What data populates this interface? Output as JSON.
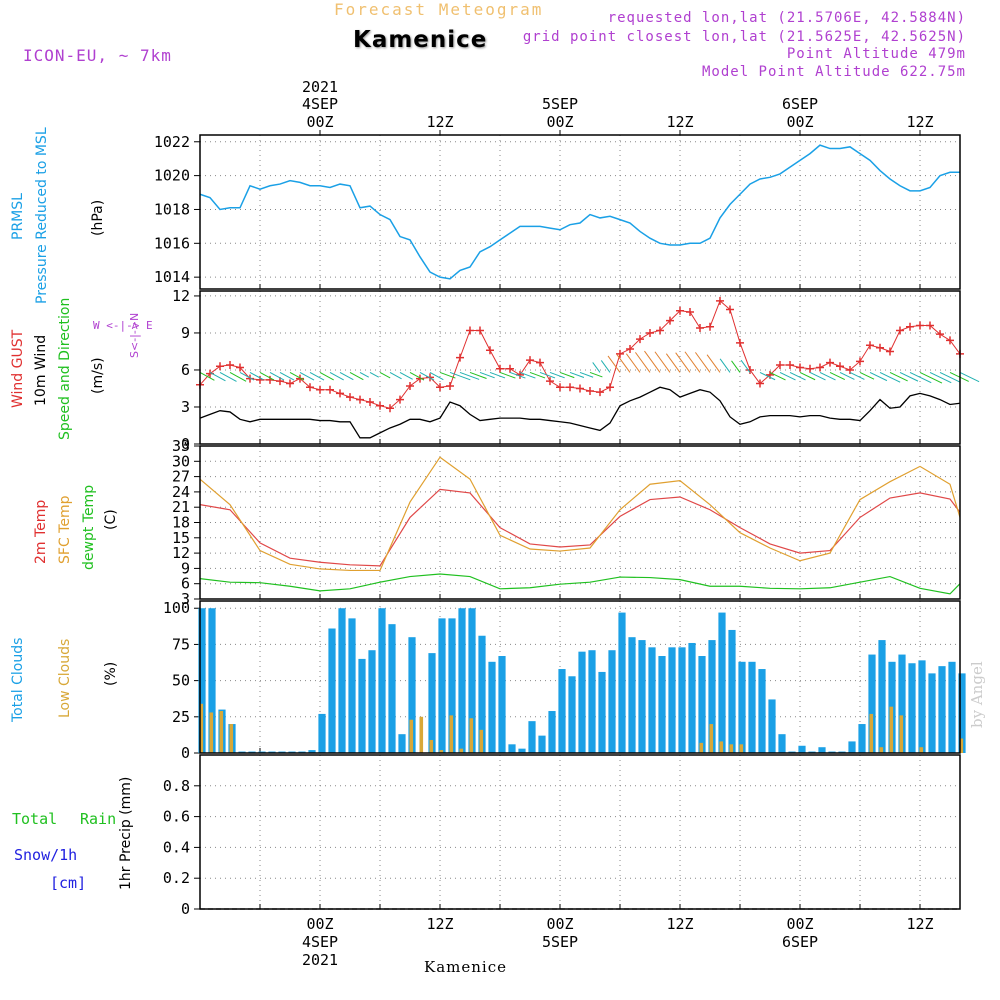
{
  "header": {
    "title_top": "Forecast Meteogram",
    "location": "Kamenice",
    "model": "ICON-EU, ~ 7km",
    "requested": "requested lon,lat (21.5706E, 42.5884N)",
    "grid_point": "grid point closest lon,lat (21.5625E, 42.5625N)",
    "point_altitude": "Point Altitude 479m",
    "model_altitude": "Model Point Altitude 622.75m",
    "watermark": "by Angel",
    "footer_location": "Kamenice"
  },
  "colors": {
    "pressure": "#1aa0e6",
    "gust": "#e03030",
    "wind10": "#000000",
    "temp2m": "#e04848",
    "sfc": "#e0a030",
    "dewpt": "#20c020",
    "total_clouds": "#1aa0e6",
    "low_clouds": "#d8a838",
    "dir_label": "#b040d0",
    "rain": "#20c020",
    "snow": "#2020e0"
  },
  "time_axis": {
    "top_ticks": [
      {
        "line1": "2021",
        "line2": "4SEP",
        "line3": "00Z",
        "h": 12
      },
      {
        "line1": "",
        "line2": "",
        "line3": "12Z",
        "h": 24
      },
      {
        "line1": "",
        "line2": "5SEP",
        "line3": "00Z",
        "h": 36
      },
      {
        "line1": "",
        "line2": "",
        "line3": "12Z",
        "h": 48
      },
      {
        "line1": "",
        "line2": "6SEP",
        "line3": "00Z",
        "h": 60
      },
      {
        "line1": "",
        "line2": "",
        "line3": "12Z",
        "h": 72
      }
    ],
    "bottom_ticks": [
      {
        "line1": "00Z",
        "line2": "4SEP",
        "line3": "2021",
        "h": 12
      },
      {
        "line1": "12Z",
        "line2": "",
        "line3": "",
        "h": 24
      },
      {
        "line1": "00Z",
        "line2": "5SEP",
        "line3": "",
        "h": 36
      },
      {
        "line1": "12Z",
        "line2": "",
        "line3": "",
        "h": 48
      },
      {
        "line1": "00Z",
        "line2": "6SEP",
        "line3": "",
        "h": 60
      },
      {
        "line1": "12Z",
        "line2": "",
        "line3": "",
        "h": 72
      }
    ]
  },
  "labels": {
    "p1": {
      "name": "PRMSL",
      "desc": "Pressure Reduced to MSL",
      "unit": "(hPa)"
    },
    "p2": {
      "gust": "Wind GUST",
      "wind": "10m Wind",
      "dir": "Speed and Direction",
      "unit": "(m/s)",
      "compass": "W <-|-> E",
      "compass_ns": "S<-|->N"
    },
    "p3": {
      "t2m": "2m Temp",
      "sfc": "SFC Temp",
      "dew": "dewpt Temp",
      "unit": "(C)"
    },
    "p4": {
      "total": "Total Clouds",
      "low": "Low Clouds",
      "unit": "(%)"
    },
    "p5": {
      "total": "Total",
      "rain": "Rain",
      "snow": "Snow/1h",
      "cm": "[cm]",
      "precip": "1hr Precip (mm)"
    }
  },
  "chart_data": [
    {
      "type": "line",
      "title": "PRMSL Pressure Reduced to MSL",
      "ylabel": "(hPa)",
      "x_unit": "hours since 3SEP 12Z",
      "ylim": [
        1013.3,
        1022.4
      ],
      "yticks": [
        1014,
        1016,
        1018,
        1020,
        1022
      ],
      "series": [
        {
          "name": "PRMSL",
          "x": [
            0,
            1,
            2,
            3,
            4,
            5,
            6,
            7,
            8,
            9,
            10,
            11,
            12,
            13,
            14,
            15,
            16,
            17,
            18,
            19,
            20,
            21,
            22,
            23,
            24,
            25,
            26,
            27,
            28,
            29,
            30,
            31,
            32,
            33,
            34,
            35,
            36,
            37,
            38,
            39,
            40,
            41,
            42,
            43,
            44,
            45,
            46,
            47,
            48,
            49,
            50,
            51,
            52,
            53,
            54,
            55,
            56,
            57,
            58,
            59,
            60,
            61,
            62,
            63,
            64,
            65,
            66,
            67,
            68,
            69,
            70,
            71,
            72,
            73,
            74,
            75,
            76
          ],
          "values": [
            1018.9,
            1018.7,
            1018.0,
            1018.1,
            1018.1,
            1019.4,
            1019.2,
            1019.4,
            1019.5,
            1019.7,
            1019.6,
            1019.4,
            1019.4,
            1019.3,
            1019.5,
            1019.4,
            1018.1,
            1018.2,
            1017.7,
            1017.4,
            1016.4,
            1016.2,
            1015.2,
            1014.3,
            1014.0,
            1013.9,
            1014.4,
            1014.6,
            1015.5,
            1015.8,
            1016.2,
            1016.6,
            1017.0,
            1017.0,
            1017.0,
            1016.9,
            1016.8,
            1017.1,
            1017.2,
            1017.7,
            1017.5,
            1017.6,
            1017.4,
            1017.2,
            1016.7,
            1016.3,
            1016.0,
            1015.9,
            1015.9,
            1016.0,
            1016.0,
            1016.3,
            1017.5,
            1018.3,
            1018.9,
            1019.5,
            1019.8,
            1019.9,
            1020.1,
            1020.5,
            1020.9,
            1021.3,
            1021.8,
            1021.6,
            1021.6,
            1021.7,
            1021.3,
            1020.9,
            1020.3,
            1019.8,
            1019.4,
            1019.1,
            1019.1,
            1019.3,
            1020.0,
            1020.2,
            1020.2
          ]
        }
      ]
    },
    {
      "type": "line",
      "title": "Wind GUST / 10m Wind Speed and Direction",
      "ylabel": "(m/s)",
      "ylim": [
        0,
        12.4
      ],
      "yticks": [
        0,
        3,
        6,
        9,
        12
      ],
      "series": [
        {
          "name": "Wind GUST",
          "x": [
            0,
            1,
            2,
            3,
            4,
            5,
            6,
            7,
            8,
            9,
            10,
            11,
            12,
            13,
            14,
            15,
            16,
            17,
            18,
            19,
            20,
            21,
            22,
            23,
            24,
            25,
            26,
            27,
            28,
            29,
            30,
            31,
            32,
            33,
            34,
            35,
            36,
            37,
            38,
            39,
            40,
            41,
            42,
            43,
            44,
            45,
            46,
            47,
            48,
            49,
            50,
            51,
            52,
            53,
            54,
            55,
            56,
            57,
            58,
            59,
            60,
            61,
            62,
            63,
            64,
            65,
            66,
            67,
            68,
            69,
            70,
            71,
            72,
            73,
            74,
            75,
            76
          ],
          "values": [
            4.8,
            5.7,
            6.3,
            6.4,
            6.2,
            5.3,
            5.2,
            5.2,
            5.1,
            4.9,
            5.3,
            4.6,
            4.4,
            4.4,
            4.1,
            3.8,
            3.6,
            3.4,
            3.1,
            2.9,
            3.6,
            4.7,
            5.3,
            5.4,
            4.6,
            4.7,
            7.0,
            9.2,
            9.2,
            7.6,
            6.1,
            6.1,
            5.6,
            6.8,
            6.6,
            5.1,
            4.6,
            4.6,
            4.5,
            4.3,
            4.2,
            4.6,
            7.3,
            7.7,
            8.5,
            9.0,
            9.2,
            10.0,
            10.8,
            10.7,
            9.4,
            9.5,
            11.6,
            10.9,
            8.2,
            6.0,
            4.9,
            5.6,
            6.4,
            6.4,
            6.2,
            6.1,
            6.2,
            6.6,
            6.3,
            6.0,
            6.7,
            8.0,
            7.8,
            7.5,
            9.2,
            9.5,
            9.6,
            9.6,
            8.9,
            8.4,
            7.3
          ]
        },
        {
          "name": "10m Wind",
          "x": [
            0,
            1,
            2,
            3,
            4,
            5,
            6,
            7,
            8,
            9,
            10,
            11,
            12,
            13,
            14,
            15,
            16,
            17,
            18,
            19,
            20,
            21,
            22,
            23,
            24,
            25,
            26,
            27,
            28,
            29,
            30,
            31,
            32,
            33,
            34,
            35,
            36,
            37,
            38,
            39,
            40,
            41,
            42,
            43,
            44,
            45,
            46,
            47,
            48,
            49,
            50,
            51,
            52,
            53,
            54,
            55,
            56,
            57,
            58,
            59,
            60,
            61,
            62,
            63,
            64,
            65,
            66,
            67,
            68,
            69,
            70,
            71,
            72,
            73,
            74,
            75,
            76
          ],
          "values": [
            2.1,
            2.4,
            2.7,
            2.6,
            2.0,
            1.8,
            2.0,
            2.0,
            2.0,
            2.0,
            2.0,
            2.0,
            1.9,
            1.9,
            1.8,
            1.8,
            0.5,
            0.5,
            0.9,
            1.3,
            1.6,
            2.0,
            2.0,
            1.8,
            2.1,
            3.4,
            3.1,
            2.4,
            1.9,
            2.0,
            2.1,
            2.1,
            2.1,
            2.0,
            2.0,
            1.9,
            1.8,
            1.7,
            1.5,
            1.3,
            1.1,
            1.7,
            3.1,
            3.5,
            3.8,
            4.2,
            4.6,
            4.4,
            3.8,
            4.1,
            4.4,
            4.2,
            3.5,
            2.2,
            1.6,
            1.8,
            2.2,
            2.3,
            2.3,
            2.3,
            2.2,
            2.3,
            2.3,
            2.1,
            2.0,
            2.0,
            1.9,
            2.7,
            3.6,
            2.9,
            3.0,
            3.9,
            4.1,
            3.9,
            3.6,
            3.2,
            3.3
          ]
        }
      ]
    },
    {
      "type": "line",
      "title": "2m Temp / SFC Temp / dewpt Temp",
      "ylabel": "(C)",
      "ylim": [
        3,
        33
      ],
      "yticks": [
        3,
        6,
        9,
        12,
        15,
        18,
        21,
        24,
        27,
        30,
        33
      ],
      "series": [
        {
          "name": "2m Temp",
          "x": [
            0,
            3,
            6,
            9,
            12,
            15,
            18,
            21,
            24,
            27,
            30,
            33,
            36,
            39,
            42,
            45,
            48,
            51,
            54,
            57,
            60,
            63,
            66,
            69,
            72,
            75,
            76
          ],
          "values": [
            21.5,
            20.5,
            14.0,
            11.0,
            10.2,
            9.7,
            9.5,
            19.0,
            24.5,
            23.8,
            17.0,
            13.8,
            13.2,
            13.6,
            19.2,
            22.5,
            23.0,
            20.5,
            17.0,
            13.8,
            12.0,
            12.5,
            19.0,
            22.8,
            23.8,
            22.6,
            20.0
          ]
        },
        {
          "name": "SFC Temp",
          "x": [
            0,
            3,
            6,
            9,
            12,
            15,
            18,
            21,
            24,
            27,
            30,
            33,
            36,
            39,
            42,
            45,
            48,
            51,
            54,
            57,
            60,
            63,
            66,
            69,
            72,
            75,
            76
          ],
          "values": [
            26.5,
            21.5,
            12.5,
            9.8,
            8.9,
            8.6,
            8.6,
            22.0,
            30.8,
            26.5,
            15.5,
            12.8,
            12.4,
            13.0,
            20.5,
            25.5,
            26.2,
            21.5,
            16.0,
            13.0,
            10.5,
            12.0,
            22.5,
            26.0,
            29.0,
            25.5,
            19.0
          ]
        },
        {
          "name": "dewpt Temp",
          "x": [
            0,
            3,
            6,
            9,
            12,
            15,
            18,
            21,
            24,
            27,
            30,
            33,
            36,
            39,
            42,
            45,
            48,
            51,
            54,
            57,
            60,
            63,
            66,
            69,
            72,
            75,
            76
          ],
          "values": [
            7.0,
            6.3,
            6.2,
            5.5,
            4.6,
            5.0,
            6.3,
            7.4,
            7.9,
            7.4,
            5.0,
            5.2,
            5.9,
            6.3,
            7.3,
            7.2,
            6.8,
            5.5,
            5.5,
            5.1,
            5.0,
            5.2,
            6.3,
            7.4,
            5.1,
            4.0,
            6.0
          ]
        }
      ]
    },
    {
      "type": "bar",
      "title": "Total Clouds / Low Clouds",
      "ylabel": "(%)",
      "ylim": [
        0,
        105
      ],
      "yticks": [
        0,
        25,
        50,
        75,
        100
      ],
      "x": [
        0,
        1,
        2,
        3,
        4,
        5,
        6,
        7,
        8,
        9,
        10,
        11,
        12,
        13,
        14,
        15,
        16,
        17,
        18,
        19,
        20,
        21,
        22,
        23,
        24,
        25,
        26,
        27,
        28,
        29,
        30,
        31,
        32,
        33,
        34,
        35,
        36,
        37,
        38,
        39,
        40,
        41,
        42,
        43,
        44,
        45,
        46,
        47,
        48,
        49,
        50,
        51,
        52,
        53,
        54,
        55,
        56,
        57,
        58,
        59,
        60,
        61,
        62,
        63,
        64,
        65,
        66,
        67,
        68,
        69,
        70,
        71,
        72,
        73,
        74,
        75,
        76
      ],
      "series": [
        {
          "name": "Total Clouds",
          "values": [
            100,
            100,
            30,
            20,
            1,
            1,
            1,
            1,
            1,
            1,
            1,
            2,
            27,
            86,
            100,
            93,
            65,
            71,
            100,
            89,
            13,
            80,
            0,
            69,
            93,
            93,
            100,
            100,
            81,
            63,
            67,
            6,
            3,
            22,
            12,
            29,
            58,
            53,
            70,
            71,
            56,
            71,
            97,
            80,
            78,
            73,
            67,
            73,
            73,
            76,
            67,
            78,
            97,
            85,
            63,
            63,
            58,
            37,
            13,
            1,
            5,
            1,
            4,
            1,
            1,
            8,
            20,
            68,
            78,
            63,
            68,
            62,
            64,
            55,
            60,
            63,
            55
          ]
        },
        {
          "name": "Low Clouds",
          "values": [
            34,
            28,
            29,
            20,
            0,
            0,
            0,
            0,
            0,
            0,
            0,
            0,
            0,
            0,
            0,
            0,
            0,
            0,
            0,
            0,
            0,
            23,
            25,
            9,
            2,
            26,
            3,
            24,
            16,
            0,
            0,
            0,
            0,
            0,
            0,
            0,
            0,
            0,
            0,
            0,
            0,
            0,
            0,
            0,
            0,
            0,
            0,
            0,
            0,
            0,
            7,
            20,
            8,
            6,
            6,
            0,
            0,
            0,
            0,
            0,
            0,
            0,
            0,
            0,
            0,
            0,
            0,
            27,
            4,
            32,
            26,
            0,
            4,
            0,
            0,
            0,
            10
          ]
        }
      ]
    },
    {
      "type": "line",
      "title": "Total Rain / Snow/1h [cm]",
      "ylabel": "1hr Precip (mm)",
      "ylim": [
        0,
        1
      ],
      "yticks": [
        0,
        0.2,
        0.4,
        0.6,
        0.8
      ],
      "series": [
        {
          "name": "Total Rain",
          "x": [
            0,
            76
          ],
          "values": [
            0,
            0
          ]
        }
      ]
    }
  ]
}
